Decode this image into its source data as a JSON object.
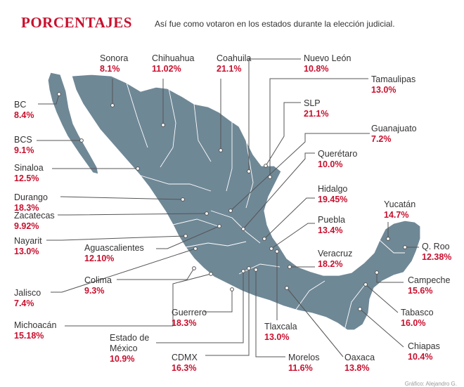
{
  "header": {
    "title": "PORCENTAJES",
    "subtitle": "Así fue como votaron en los estados durante la elección judicial."
  },
  "credit": "Gráfico: Alejandro G.",
  "colors": {
    "accent": "#c8102e",
    "map_fill": "#6f8896",
    "map_border": "#ffffff",
    "leader_line": "#555555"
  },
  "states": {
    "sonora": {
      "name": "Sonora",
      "value": "8.1%"
    },
    "chihuahua": {
      "name": "Chihuahua",
      "value": "11.02%"
    },
    "coahuila": {
      "name": "Coahuila",
      "value": "21.1%"
    },
    "nuevo_leon": {
      "name": "Nuevo León",
      "value": "10.8%"
    },
    "tamaulipas": {
      "name": "Tamaulipas",
      "value": "13.0%"
    },
    "slp": {
      "name": "SLP",
      "value": "21.1%"
    },
    "guanajuato": {
      "name": "Guanajuato",
      "value": "7.2%"
    },
    "queretaro": {
      "name": "Querétaro",
      "value": "10.0%"
    },
    "hidalgo": {
      "name": "Hidalgo",
      "value": "19.45%"
    },
    "puebla": {
      "name": "Puebla",
      "value": "13.4%"
    },
    "veracruz": {
      "name": "Veracruz",
      "value": "18.2%"
    },
    "yucatan": {
      "name": "Yucatán",
      "value": "14.7%"
    },
    "q_roo": {
      "name": "Q. Roo",
      "value": "12.38%"
    },
    "campeche": {
      "name": "Campeche",
      "value": "15.6%"
    },
    "tabasco": {
      "name": "Tabasco",
      "value": "16.0%"
    },
    "chiapas": {
      "name": "Chiapas",
      "value": "10.4%"
    },
    "oaxaca": {
      "name": "Oaxaca",
      "value": "13.8%"
    },
    "morelos": {
      "name": "Morelos",
      "value": "11.6%"
    },
    "tlaxcala": {
      "name": "Tlaxcala",
      "value": "13.0%"
    },
    "cdmx": {
      "name": "CDMX",
      "value": "16.3%"
    },
    "edomex": {
      "name": "Estado de México",
      "value": "10.9%"
    },
    "guerrero": {
      "name": "Guerrero",
      "value": "18.3%"
    },
    "michoacan": {
      "name": "Michoacán",
      "value": "15.18%"
    },
    "colima": {
      "name": "Colima",
      "value": "9.3%"
    },
    "jalisco": {
      "name": "Jalisco",
      "value": "7.4%"
    },
    "aguascalientes": {
      "name": "Aguascalientes",
      "value": "12.10%"
    },
    "nayarit": {
      "name": "Nayarit",
      "value": "13.0%"
    },
    "zacatecas": {
      "name": "Zacatecas",
      "value": "9.92%"
    },
    "durango": {
      "name": "Durango",
      "value": "18.3%"
    },
    "sinaloa": {
      "name": "Sinaloa",
      "value": "12.5%"
    },
    "bcs": {
      "name": "BCS",
      "value": "9.1%"
    },
    "bc": {
      "name": "BC",
      "value": "8.4%"
    }
  }
}
